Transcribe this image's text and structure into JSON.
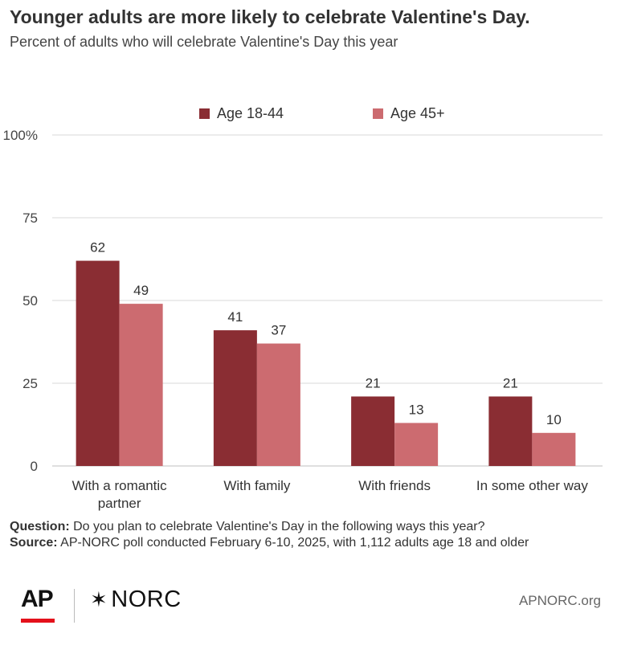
{
  "title": "Younger adults are more likely to celebrate Valentine's Day.",
  "subtitle": "Percent of adults who will celebrate Valentine's Day this year",
  "chart_data": {
    "type": "bar",
    "categories": [
      "With a romantic\npartner",
      "With family",
      "With friends",
      "In some other way"
    ],
    "series": [
      {
        "name": "Age 18-44",
        "color": "#8a2d33",
        "values": [
          62,
          41,
          21,
          21
        ]
      },
      {
        "name": "Age 45+",
        "color": "#cc6b70",
        "values": [
          49,
          37,
          13,
          10
        ]
      }
    ],
    "y_ticks": [
      "0",
      "25",
      "50",
      "75",
      "100%"
    ],
    "ylim": [
      0,
      100
    ],
    "grid": true,
    "legend_position": "top-center"
  },
  "notes": {
    "question_label": "Question:",
    "question_text": "Do you plan to celebrate Valentine's Day in the following ways this year?",
    "source_label": "Source:",
    "source_text": "AP-NORC poll conducted February 6-10, 2025, with 1,112 adults age 18 and older"
  },
  "footer": {
    "ap_logo": "AP",
    "norc_logo": "NORC",
    "norc_star": "✶",
    "site": "APNORC.org"
  }
}
